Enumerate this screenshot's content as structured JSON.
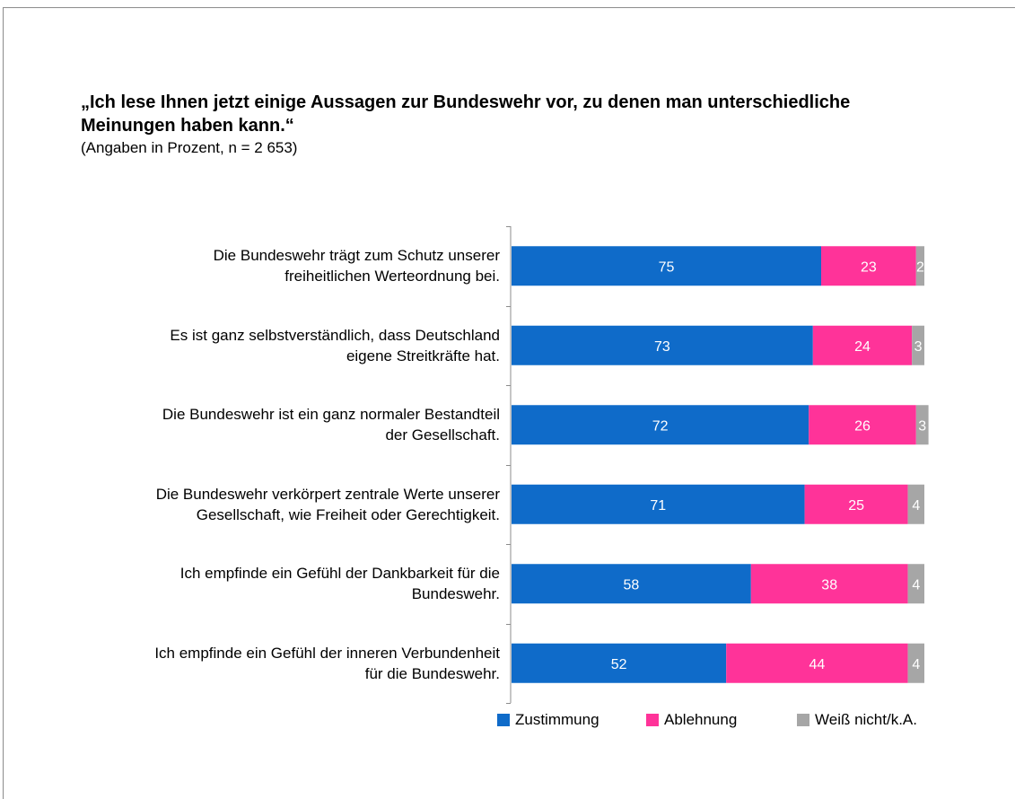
{
  "title": "„Ich lese Ihnen jetzt einige Aussagen zur Bundeswehr vor, zu denen man unterschiedliche Meinungen haben kann.“",
  "subtitle": "(Angaben in Prozent, n = 2 653)",
  "colors": {
    "zustimmung": "#0f6bc9",
    "ablehnung": "#ff3399",
    "weiss_nicht": "#a6a6a6",
    "label_text": "#ffffff",
    "axis": "#8c8c8c"
  },
  "chart_data": {
    "type": "bar",
    "orientation": "horizontal",
    "stacked": true,
    "xlim": [
      0,
      100
    ],
    "grid": false,
    "legend_position": "bottom",
    "categories": [
      "Die Bundeswehr trägt zum Schutz unserer freiheitlichen Werteordnung bei.",
      "Es ist ganz selbstverständlich, dass Deutschland eigene Streitkräfte hat.",
      "Die Bundeswehr ist ein ganz normaler Bestandteil der Gesellschaft.",
      "Die Bundeswehr verkörpert zentrale Werte unserer Gesellschaft, wie Freiheit oder Gerechtigkeit.",
      "Ich empfinde ein Gefühl der Dankbarkeit für die Bundeswehr.",
      "Ich empfinde ein Gefühl der inneren Verbundenheit für die Bundeswehr."
    ],
    "category_lines": [
      [
        "Die Bundeswehr trägt zum Schutz unserer",
        "freiheitlichen Werteordnung bei."
      ],
      [
        "Es ist ganz selbstverständlich, dass Deutschland",
        "eigene Streitkräfte hat."
      ],
      [
        "Die Bundeswehr ist ein ganz normaler Bestandteil",
        "der Gesellschaft."
      ],
      [
        "Die Bundeswehr verkörpert zentrale Werte unserer",
        "Gesellschaft, wie Freiheit oder Gerechtigkeit."
      ],
      [
        "Ich empfinde ein Gefühl der Dankbarkeit für die",
        "Bundeswehr."
      ],
      [
        "Ich empfinde ein Gefühl der inneren Verbundenheit",
        "für die Bundeswehr."
      ]
    ],
    "series": [
      {
        "name": "Zustimmung",
        "color": "#0f6bc9",
        "values": [
          75,
          73,
          72,
          71,
          58,
          52
        ]
      },
      {
        "name": "Ablehnung",
        "color": "#ff3399",
        "values": [
          23,
          24,
          26,
          25,
          38,
          44
        ]
      },
      {
        "name": "Weiß nicht/k.A.",
        "color": "#a6a6a6",
        "values": [
          2,
          3,
          3,
          4,
          4,
          4
        ]
      }
    ]
  }
}
